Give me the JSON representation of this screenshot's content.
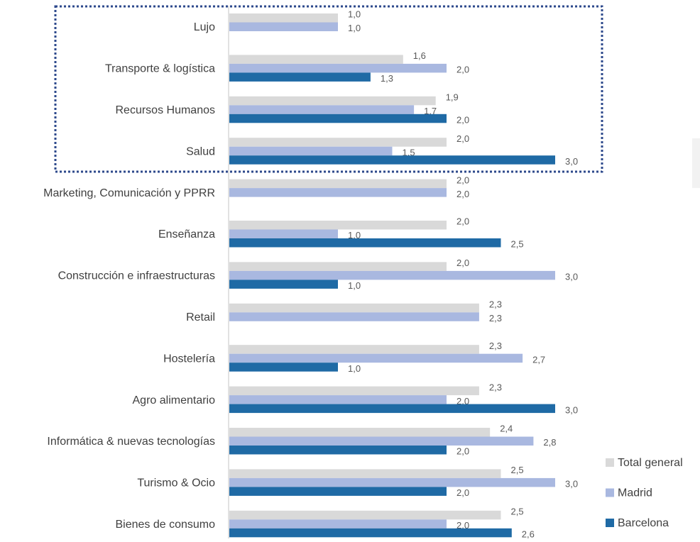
{
  "chart_data": {
    "type": "bar",
    "orientation": "horizontal",
    "categories": [
      "Lujo",
      "Transporte & logística",
      "Recursos Humanos",
      "Salud",
      "Marketing, Comunicación  y PPRR",
      "Enseñanza",
      "Construcción e infraestructuras",
      "Retail",
      "Hostelería",
      "Agro alimentario",
      "Informática & nuevas tecnologías",
      "Turismo & Ocio",
      "Bienes de consumo"
    ],
    "series": [
      {
        "name": "Total general",
        "color": "#d9d9d9",
        "values": [
          1.0,
          1.6,
          1.9,
          2.0,
          2.0,
          2.0,
          2.0,
          2.3,
          2.3,
          2.3,
          2.4,
          2.5,
          2.5
        ],
        "value_labels": [
          "1,0",
          "1,6",
          "1,9",
          "2,0",
          "2,0",
          "2,0",
          "2,0",
          "2,3",
          "2,3",
          "2,3",
          "2,4",
          "2,5",
          "2,5"
        ]
      },
      {
        "name": "Madrid",
        "color": "#a9b8e0",
        "values": [
          1.0,
          2.0,
          1.7,
          1.5,
          2.0,
          1.0,
          3.0,
          2.3,
          2.7,
          2.0,
          2.8,
          3.0,
          2.0
        ],
        "value_labels": [
          "1,0",
          "2,0",
          "1,7",
          "1,5",
          "2,0",
          "1,0",
          "3,0",
          "2,3",
          "2,7",
          "2,0",
          "2,8",
          "3,0",
          "2,0"
        ]
      },
      {
        "name": "Barcelona",
        "color": "#1f6aa5",
        "values": [
          null,
          1.3,
          2.0,
          3.0,
          null,
          2.5,
          1.0,
          null,
          1.0,
          3.0,
          2.0,
          2.0,
          2.6
        ],
        "value_labels": [
          null,
          "1,3",
          "2,0",
          "3,0",
          null,
          "2,5",
          "1,0",
          null,
          "1,0",
          "3,0",
          "2,0",
          "2,0",
          "2,6"
        ]
      }
    ],
    "xlim": [
      0,
      3
    ],
    "legend": "lower right"
  }
}
